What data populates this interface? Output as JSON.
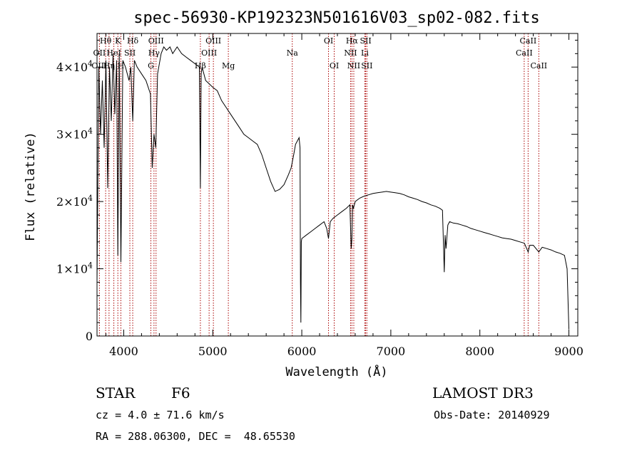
{
  "chart_data": {
    "type": "line",
    "title": "spec-56930-KP192323N501616V03_sp02-082.fits",
    "xlabel": "Wavelength (Å)",
    "ylabel": "Flux (relative)",
    "xlim": [
      3700,
      9100
    ],
    "ylim": [
      0,
      45000
    ],
    "x_ticks": [
      4000,
      5000,
      6000,
      7000,
      8000,
      9000
    ],
    "x_tick_labels": [
      "4000",
      "5000",
      "6000",
      "7000",
      "8000",
      "9000"
    ],
    "y_ticks": [
      {
        "value": 0,
        "mantissa": "0",
        "exponent": ""
      },
      {
        "value": 10000,
        "mantissa": "1×10",
        "exponent": "4"
      },
      {
        "value": 20000,
        "mantissa": "2×10",
        "exponent": "4"
      },
      {
        "value": 30000,
        "mantissa": "3×10",
        "exponent": "4"
      },
      {
        "value": 40000,
        "mantissa": "4×10",
        "exponent": "4"
      }
    ],
    "series": [
      {
        "name": "flux",
        "x": [
          3700,
          3720,
          3740,
          3760,
          3780,
          3800,
          3820,
          3840,
          3860,
          3880,
          3900,
          3920,
          3934,
          3950,
          3968,
          3990,
          4020,
          4060,
          4080,
          4101,
          4120,
          4150,
          4200,
          4250,
          4300,
          4320,
          4340,
          4360,
          4380,
          4420,
          4450,
          4480,
          4520,
          4550,
          4600,
          4650,
          4700,
          4750,
          4800,
          4850,
          4861,
          4870,
          4880,
          4920,
          4960,
          5000,
          5050,
          5100,
          5150,
          5200,
          5250,
          5300,
          5350,
          5400,
          5450,
          5500,
          5550,
          5600,
          5650,
          5700,
          5750,
          5800,
          5850,
          5880,
          5895,
          5910,
          5930,
          5950,
          5970,
          5980,
          5985,
          5990,
          5995,
          6000,
          6050,
          6100,
          6150,
          6200,
          6250,
          6280,
          6300,
          6320,
          6350,
          6400,
          6450,
          6500,
          6540,
          6555,
          6563,
          6570,
          6580,
          6600,
          6650,
          6700,
          6750,
          6800,
          6850,
          6900,
          6950,
          7000,
          7050,
          7100,
          7150,
          7200,
          7250,
          7300,
          7350,
          7400,
          7450,
          7500,
          7550,
          7580,
          7600,
          7610,
          7620,
          7640,
          7660,
          7700,
          7750,
          7800,
          7850,
          7900,
          7950,
          8000,
          8050,
          8100,
          8150,
          8200,
          8250,
          8300,
          8350,
          8400,
          8450,
          8500,
          8542,
          8560,
          8600,
          8662,
          8700,
          8750,
          8800,
          8850,
          8900,
          8950,
          8980,
          9000
        ],
        "y": [
          8000,
          40000,
          30000,
          38000,
          28000,
          41000,
          22000,
          40000,
          32000,
          42000,
          33000,
          41000,
          12000,
          42000,
          11000,
          41000,
          40000,
          38000,
          40000,
          32000,
          41000,
          40000,
          39000,
          38000,
          36000,
          25000,
          30000,
          28000,
          39000,
          42000,
          43000,
          42500,
          43000,
          42000,
          43000,
          42000,
          41500,
          41000,
          40500,
          40000,
          22000,
          39000,
          40000,
          38000,
          37500,
          37000,
          36500,
          35000,
          34000,
          33000,
          32000,
          31000,
          30000,
          29500,
          29000,
          28500,
          27000,
          25000,
          23000,
          21500,
          21800,
          22500,
          24000,
          25000,
          26000,
          27000,
          28500,
          29000,
          29500,
          28000,
          8000,
          2000,
          14000,
          14500,
          15000,
          15500,
          16000,
          16500,
          17000,
          16000,
          14500,
          17000,
          17500,
          18000,
          18500,
          19000,
          19500,
          13000,
          14500,
          19500,
          19000,
          20000,
          20500,
          20800,
          21000,
          21200,
          21300,
          21400,
          21500,
          21400,
          21300,
          21200,
          21000,
          20700,
          20500,
          20300,
          20000,
          19800,
          19500,
          19300,
          19000,
          18700,
          9500,
          15000,
          13000,
          16500,
          17000,
          16800,
          16700,
          16500,
          16300,
          16000,
          15800,
          15600,
          15400,
          15200,
          15000,
          14800,
          14600,
          14500,
          14400,
          14200,
          14000,
          13800,
          12500,
          13500,
          13500,
          12500,
          13200,
          13000,
          12800,
          12500,
          12300,
          12000,
          10000,
          1000
        ]
      }
    ],
    "spectral_lines": [
      {
        "label": "Hθ",
        "wavelength": 3797,
        "row": 1
      },
      {
        "label": "K",
        "wavelength": 3934,
        "row": 1
      },
      {
        "label": "Hδ",
        "wavelength": 4101,
        "row": 1
      },
      {
        "label": "OII",
        "wavelength": 3727,
        "row": 2
      },
      {
        "label": "HeI",
        "wavelength": 3889,
        "row": 2
      },
      {
        "label": "SII",
        "wavelength": 4069,
        "row": 2
      },
      {
        "label": "OIII",
        "wavelength": 3727,
        "row": 3
      },
      {
        "label": "Hη",
        "wavelength": 3835,
        "row": 3
      },
      {
        "label": "H",
        "wavelength": 3968,
        "row": 3
      },
      {
        "label": "OIII",
        "wavelength": 4363,
        "row": 1
      },
      {
        "label": "Hγ",
        "wavelength": 4340,
        "row": 2
      },
      {
        "label": "G",
        "wavelength": 4305,
        "row": 3
      },
      {
        "label": "OIII",
        "wavelength": 5007,
        "row": 1
      },
      {
        "label": "OIII",
        "wavelength": 4959,
        "row": 2
      },
      {
        "label": "Hβ",
        "wavelength": 4861,
        "row": 3
      },
      {
        "label": "Mg",
        "wavelength": 5175,
        "row": 3
      },
      {
        "label": "Na",
        "wavelength": 5893,
        "row": 2
      },
      {
        "label": "OI",
        "wavelength": 6300,
        "row": 1
      },
      {
        "label": "OI",
        "wavelength": 6364,
        "row": 3
      },
      {
        "label": "Hα",
        "wavelength": 6563,
        "row": 1
      },
      {
        "label": "SII",
        "wavelength": 6717,
        "row": 1
      },
      {
        "label": "NII",
        "wavelength": 6548,
        "row": 2
      },
      {
        "label": "Li",
        "wavelength": 6708,
        "row": 2
      },
      {
        "label": "NII",
        "wavelength": 6584,
        "row": 3
      },
      {
        "label": "SII",
        "wavelength": 6731,
        "row": 3
      },
      {
        "label": "CaII",
        "wavelength": 8542,
        "row": 1
      },
      {
        "label": "CaII",
        "wavelength": 8498,
        "row": 2
      },
      {
        "label": "CaII",
        "wavelength": 8662,
        "row": 3
      }
    ],
    "line_color": "#aa0000"
  },
  "info": {
    "class": "STAR",
    "subclass": "F6",
    "survey": "LAMOST DR3",
    "cz": "cz = 4.0 ± 71.6 km/s",
    "obs_date": "Obs-Date: 20140929",
    "coords": "RA = 288.06300, DEC =  48.65530"
  }
}
